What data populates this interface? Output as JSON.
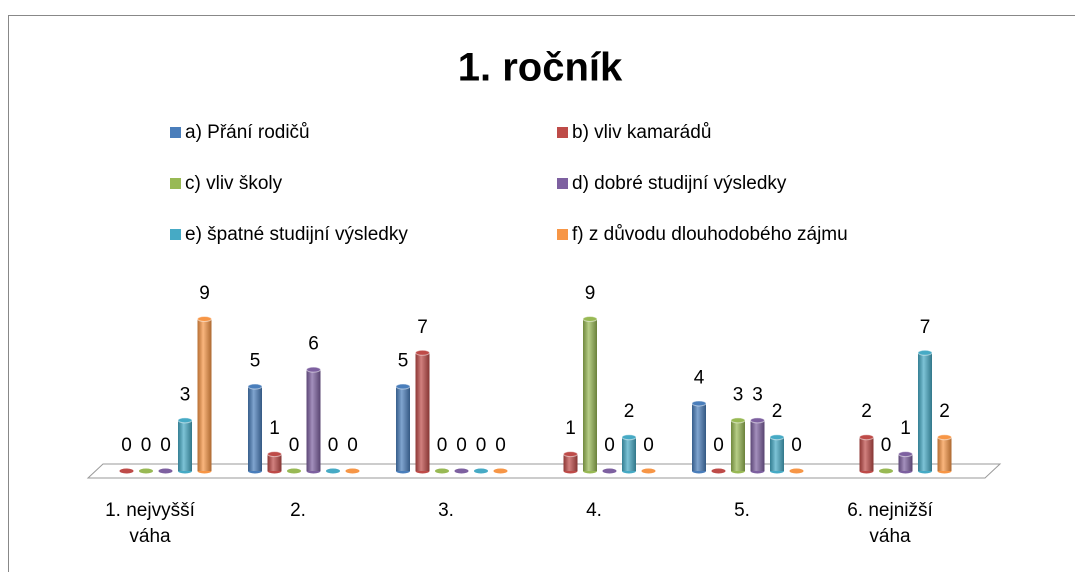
{
  "chart_data": {
    "type": "bar3d",
    "title": "1. ročník",
    "categories": [
      "1. nejvyšší váha",
      "2.",
      "3.",
      "4.",
      "5.",
      "6. nejnižší váha"
    ],
    "series": [
      {
        "name": "a) Přání rodičů",
        "color": "#4a7ebb",
        "values": [
          null,
          5,
          5,
          null,
          4,
          null
        ]
      },
      {
        "name": "b) vliv kamarádů",
        "color": "#be4b48",
        "values": [
          0,
          1,
          7,
          1,
          0,
          2
        ]
      },
      {
        "name": "c) vliv školy",
        "color": "#98b954",
        "values": [
          0,
          0,
          0,
          9,
          3,
          0
        ]
      },
      {
        "name": "d) dobré studijní výsledky",
        "color": "#7d60a0",
        "values": [
          0,
          6,
          0,
          0,
          3,
          1
        ]
      },
      {
        "name": "e) špatné studijní výsledky",
        "color": "#46aac5",
        "values": [
          3,
          0,
          0,
          2,
          2,
          7
        ]
      },
      {
        "name": "f) z důvodu dlouhodobého zájmu",
        "color": "#f79646",
        "values": [
          9,
          0,
          0,
          0,
          0,
          2
        ]
      }
    ],
    "legend": "top"
  }
}
